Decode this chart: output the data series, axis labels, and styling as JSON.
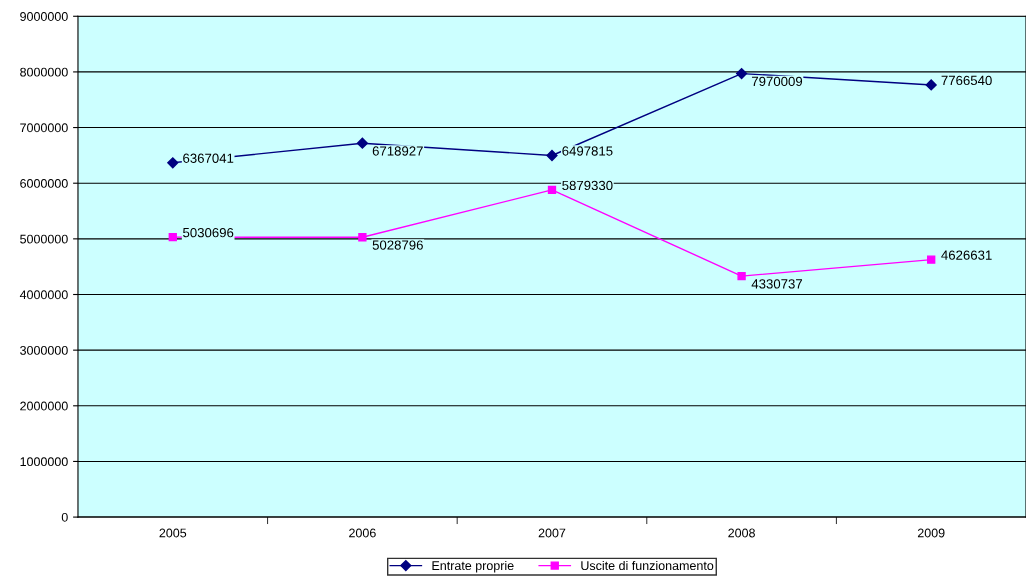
{
  "chart_data": {
    "type": "line",
    "categories": [
      "2005",
      "2006",
      "2007",
      "2008",
      "2009"
    ],
    "series": [
      {
        "name": "Entrate proprie",
        "color": "#000080",
        "marker": "diamond",
        "values": [
          6367041,
          6718927,
          6497815,
          7970009,
          7766540
        ]
      },
      {
        "name": "Uscite di funzionamento",
        "color": "#ff00ff",
        "marker": "square",
        "values": [
          5030696,
          5028796,
          5879330,
          4330737,
          4626631
        ]
      }
    ],
    "ylim": [
      0,
      9000000
    ],
    "yticks": [
      0,
      1000000,
      2000000,
      3000000,
      4000000,
      5000000,
      6000000,
      7000000,
      8000000,
      9000000
    ],
    "grid": "y",
    "legend": "bottom",
    "data_labels": true,
    "line_style": "solid"
  }
}
